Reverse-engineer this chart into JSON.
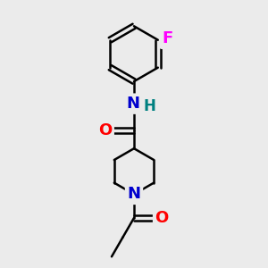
{
  "background_color": "#ebebeb",
  "bond_color": "#000000",
  "bond_width": 1.8,
  "atom_colors": {
    "O": "#ff0000",
    "N_amide": "#0000cd",
    "N_pipe": "#0000cd",
    "H": "#008080",
    "F": "#ff00ff",
    "C": "#000000"
  },
  "font_size_atoms": 13,
  "font_size_H": 12,
  "figsize": [
    3.0,
    3.0
  ],
  "dpi": 100,
  "xlim": [
    0,
    10
  ],
  "ylim": [
    0,
    10
  ]
}
